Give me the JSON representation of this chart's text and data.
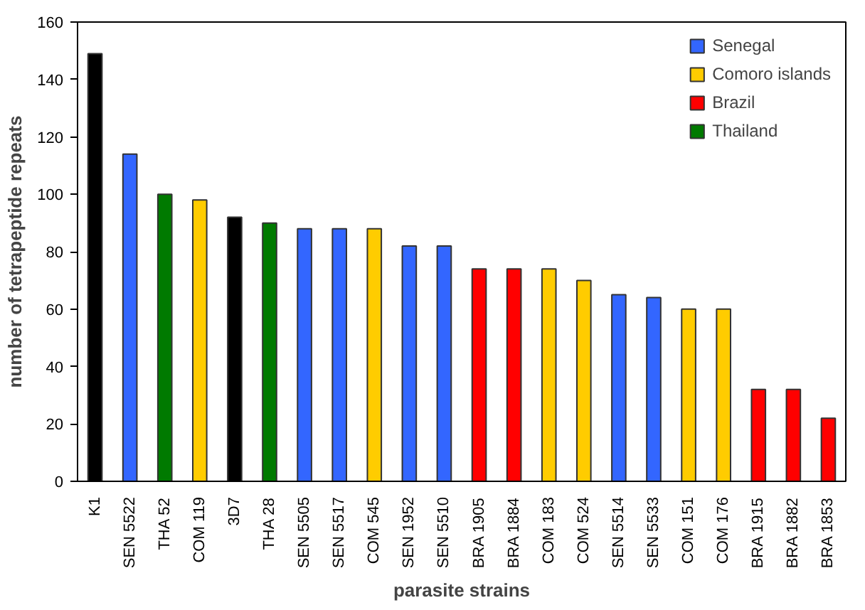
{
  "chart_data": {
    "type": "bar",
    "xlabel": "parasite strains",
    "ylabel": "number of tetrapeptide repeats",
    "categories": [
      "K1",
      "SEN 5522",
      "THA 52",
      "COM 119",
      "3D7",
      "THA 28",
      "SEN 5505",
      "SEN 5517",
      "COM 545",
      "SEN 1952",
      "SEN 5510",
      "BRA 1905",
      "BRA 1884",
      "COM 183",
      "COM 524",
      "SEN 5514",
      "SEN 5533",
      "COM 151",
      "COM 176",
      "BRA 1915",
      "BRA 1882",
      "BRA 1853"
    ],
    "series": [
      {
        "name": "Senegal",
        "color": "#3366ff",
        "values": [
          null,
          114,
          null,
          null,
          null,
          null,
          88,
          88,
          null,
          82,
          82,
          null,
          null,
          null,
          null,
          65,
          64,
          null,
          null,
          null,
          null,
          null
        ]
      },
      {
        "name": "Comoro islands",
        "color": "#ffcc00",
        "values": [
          null,
          null,
          null,
          98,
          null,
          null,
          null,
          null,
          88,
          null,
          null,
          null,
          null,
          74,
          70,
          null,
          null,
          60,
          60,
          null,
          null,
          null
        ]
      },
      {
        "name": "Brazil",
        "color": "#ff0000",
        "values": [
          null,
          null,
          null,
          null,
          null,
          null,
          null,
          null,
          null,
          null,
          null,
          74,
          74,
          null,
          null,
          null,
          null,
          null,
          null,
          32,
          32,
          22
        ]
      },
      {
        "name": "Thailand",
        "color": "#007a00",
        "values": [
          null,
          null,
          100,
          null,
          null,
          90,
          null,
          null,
          null,
          null,
          null,
          null,
          null,
          null,
          null,
          null,
          null,
          null,
          null,
          null,
          null,
          null
        ]
      },
      {
        "color": "#000000",
        "values": [
          149,
          null,
          null,
          null,
          92,
          null,
          null,
          null,
          null,
          null,
          null,
          null,
          null,
          null,
          null,
          null,
          null,
          null,
          null,
          null,
          null,
          null
        ]
      }
    ],
    "ylim": [
      0,
      160
    ],
    "yticks": [
      0,
      20,
      40,
      60,
      80,
      100,
      120,
      140,
      160
    ],
    "grid": false,
    "legend": "top right"
  }
}
